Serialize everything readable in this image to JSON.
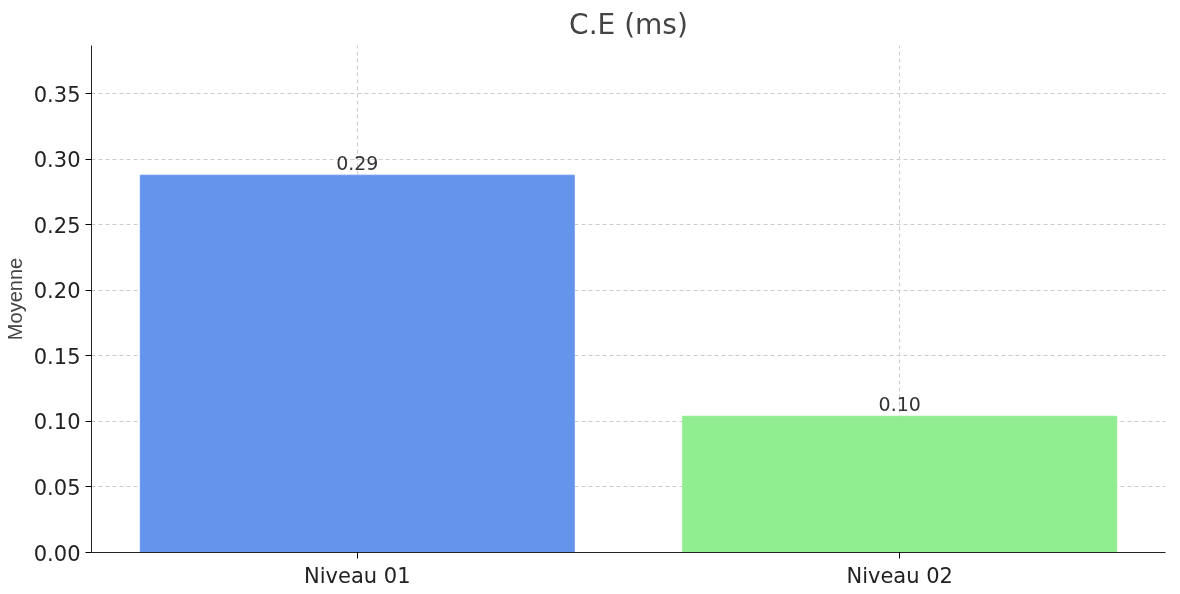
{
  "chart_data": {
    "type": "bar",
    "title": "C.E (ms)",
    "ylabel": "Moyenne",
    "categories": [
      "Niveau 01",
      "Niveau 02"
    ],
    "values": [
      0.288,
      0.104
    ],
    "value_labels": [
      "0.29",
      "0.10"
    ],
    "colors": [
      "#6495ed",
      "#90ee90"
    ],
    "ylim": [
      0,
      0.387
    ],
    "yticks": [
      {
        "value": 0,
        "label": "0.00"
      },
      0.05,
      {
        "value": 0.1,
        "label": "0.10"
      },
      0.15,
      {
        "value": 0.2,
        "label": "0.20"
      },
      0.25,
      {
        "value": 0.3,
        "label": "0.30"
      },
      0.35
    ],
    "grid": true
  }
}
